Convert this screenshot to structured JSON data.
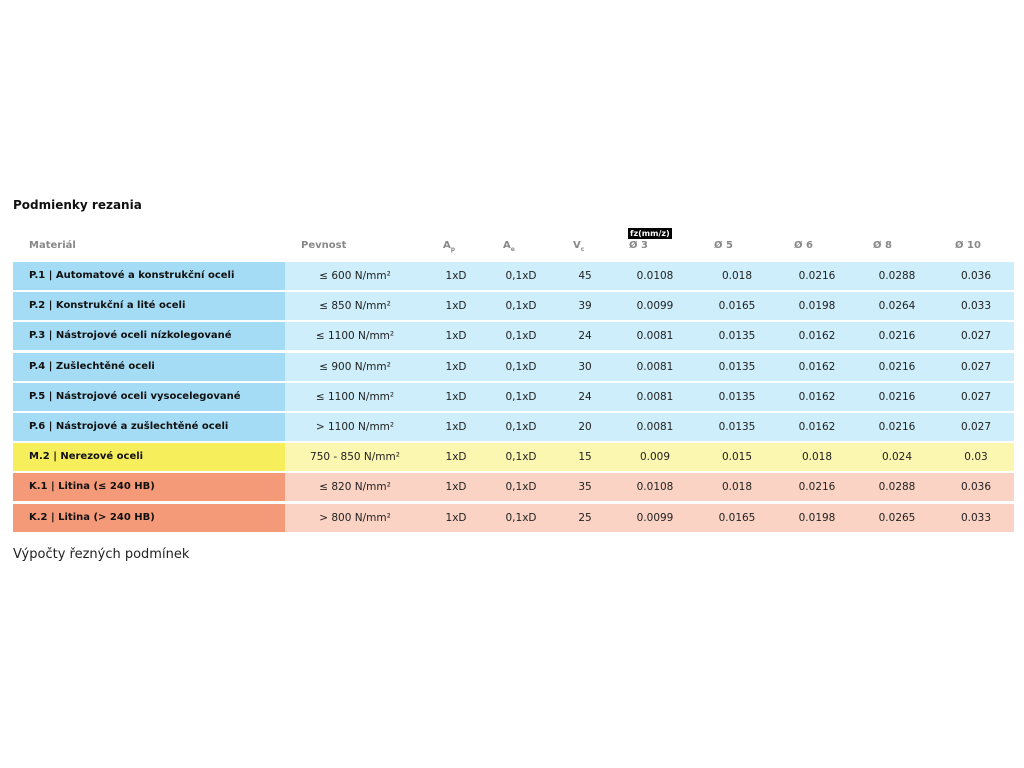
{
  "title": "Podmienky rezania",
  "fz_label": "fz(mm/z)",
  "header": [
    {
      "text": "Materiál"
    },
    {
      "text": "Pevnost"
    },
    {
      "text": "A",
      "sub": "p"
    },
    {
      "text": "A",
      "sub": "e"
    },
    {
      "text": "V",
      "sub": "c"
    },
    {
      "text": "Ø 3"
    },
    {
      "text": "Ø 5"
    },
    {
      "text": "Ø 6"
    },
    {
      "text": "Ø 8"
    },
    {
      "text": "Ø 10"
    }
  ],
  "rows": [
    [
      "P.1 | Automatové a konstrukční oceli",
      "≤ 600 N/mm²",
      "1xD",
      "0,1xD",
      "45",
      "0.0108",
      "0.018",
      "0.0216",
      "0.0288",
      "0.036"
    ],
    [
      "P.2 | Konstrukční a lité oceli",
      "≤ 850 N/mm²",
      "1xD",
      "0,1xD",
      "39",
      "0.0099",
      "0.0165",
      "0.0198",
      "0.0264",
      "0.033"
    ],
    [
      "P.3 | Nástrojové oceli nízkolegované",
      "≤ 1100 N/mm²",
      "1xD",
      "0,1xD",
      "24",
      "0.0081",
      "0.0135",
      "0.0162",
      "0.0216",
      "0.027"
    ],
    [
      "P.4 | Zušlechtěné oceli",
      "≤ 900 N/mm²",
      "1xD",
      "0,1xD",
      "30",
      "0.0081",
      "0.0135",
      "0.0162",
      "0.0216",
      "0.027"
    ],
    [
      "P.5 | Nástrojové oceli vysocelegované",
      "≤ 1100 N/mm²",
      "1xD",
      "0,1xD",
      "24",
      "0.0081",
      "0.0135",
      "0.0162",
      "0.0216",
      "0.027"
    ],
    [
      "P.6 | Nástrojové a zušlechtěné oceli",
      "> 1100 N/mm²",
      "1xD",
      "0,1xD",
      "20",
      "0.0081",
      "0.0135",
      "0.0162",
      "0.0216",
      "0.027"
    ],
    [
      "M.2 | Nerezové oceli",
      "750 - 850 N/mm²",
      "1xD",
      "0,1xD",
      "15",
      "0.009",
      "0.015",
      "0.018",
      "0.024",
      "0.03"
    ],
    [
      "K.1 | Litina (≤ 240 HB)",
      "≤ 820 N/mm²",
      "1xD",
      "0,1xD",
      "35",
      "0.0108",
      "0.018",
      "0.0216",
      "0.0288",
      "0.036"
    ],
    [
      "K.2 | Litina (> 240 HB)",
      "> 800 N/mm²",
      "1xD",
      "0,1xD",
      "25",
      "0.0099",
      "0.0165",
      "0.0198",
      "0.0265",
      "0.033"
    ]
  ],
  "caption": "Výpočty řezných podmínek"
}
